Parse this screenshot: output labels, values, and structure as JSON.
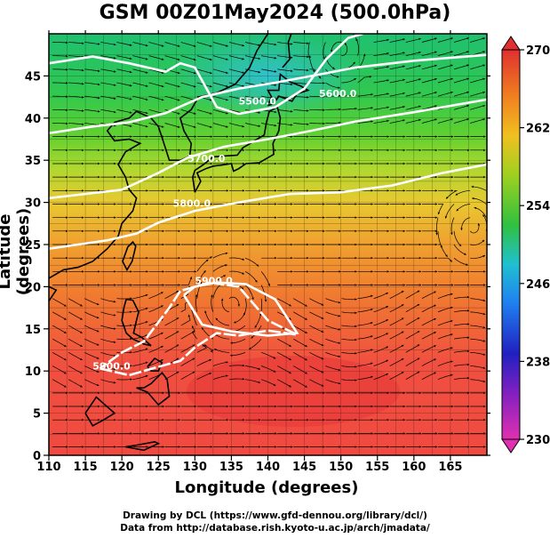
{
  "title": "GSM 00Z01May2024 (500.0hPa)",
  "credits": {
    "line1": "Drawing by DCL (https://www.gfd-dennou.org/library/dcl/)",
    "line2": "Data from http://database.rish.kyoto-u.ac.jp/arch/jmadata/"
  },
  "chart_data": {
    "type": "heatmap",
    "title": "GSM 00Z01May2024 (500.0hPa)",
    "xlabel": "Longitude (degrees)",
    "ylabel": "Latitude  (degrees)",
    "xlim": [
      110,
      170
    ],
    "ylim": [
      0,
      50
    ],
    "x_ticks": [
      "110",
      "115",
      "120",
      "125",
      "130",
      "135",
      "140",
      "145",
      "150",
      "155",
      "160",
      "165"
    ],
    "y_ticks": [
      "0",
      "5",
      "10",
      "15",
      "20",
      "25",
      "30",
      "35",
      "40",
      "45"
    ],
    "colorbar": {
      "ticks": [
        "230",
        "238",
        "246",
        "254",
        "262",
        "270"
      ],
      "min": 230,
      "max": 270,
      "colors": [
        "#e040c0",
        "#3020c0",
        "#20a0f0",
        "#20d040",
        "#f0d020",
        "#f07020",
        "#e03030"
      ]
    },
    "contours": [
      {
        "label": "5900.0"
      },
      {
        "label": "5900.0"
      },
      {
        "label": "5800.0"
      },
      {
        "label": "5700.0"
      },
      {
        "label": "5600.0"
      },
      {
        "label": "5500.0"
      }
    ],
    "grid": true
  }
}
